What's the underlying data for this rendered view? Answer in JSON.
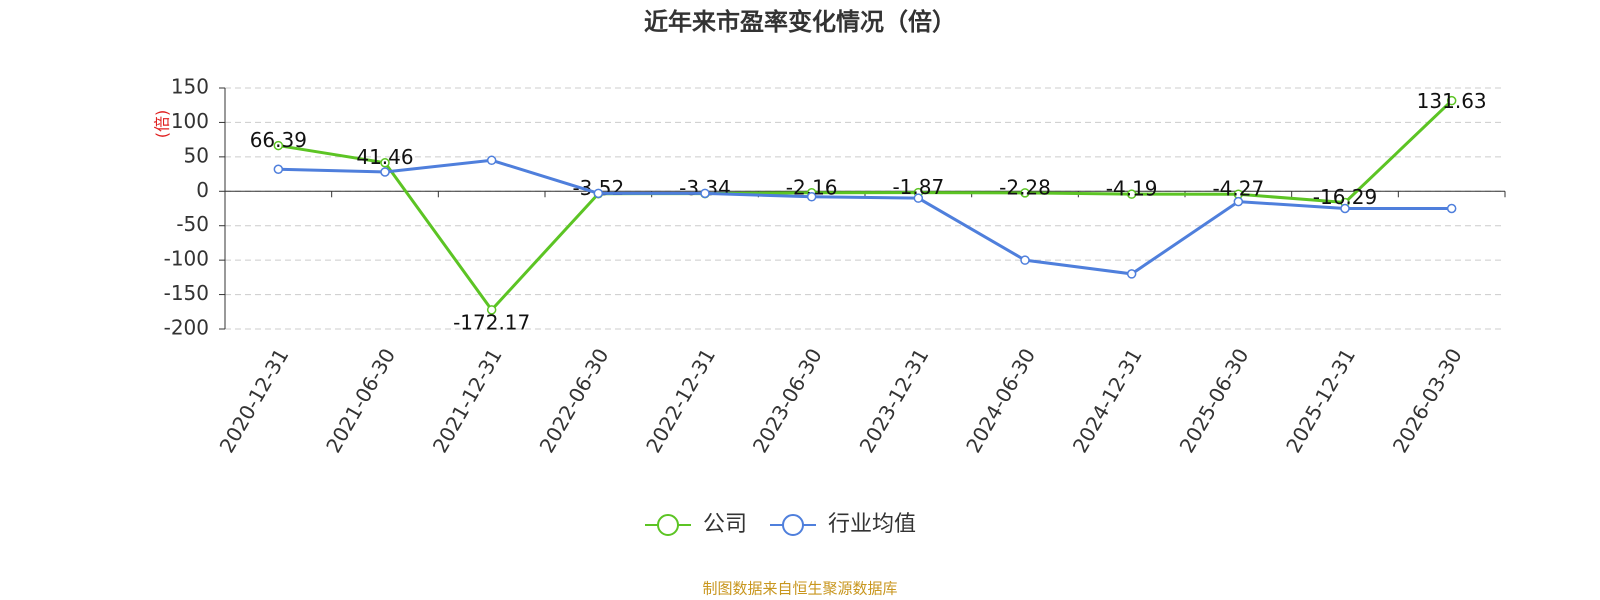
{
  "chart_data": {
    "type": "line",
    "title": "近年来市盈率变化情况（倍）",
    "ylabel": "(倍)",
    "source": "制图数据来自恒生聚源数据库",
    "categories": [
      "2020-12-31",
      "2021-06-30",
      "2021-12-31",
      "2022-06-30",
      "2022-12-31",
      "2023-06-30",
      "2023-12-31",
      "2024-06-30",
      "2024-12-31",
      "2025-06-30",
      "2025-12-31",
      "2026-03-30"
    ],
    "series": [
      {
        "name": "公司",
        "color": "#5cc424",
        "labels": true,
        "values": [
          66.39,
          41.46,
          -172.17,
          -3.52,
          -3.34,
          -2.16,
          -1.87,
          -2.28,
          -4.19,
          -4.27,
          -16.29,
          131.63
        ]
      },
      {
        "name": "行业均值",
        "color": "#4f7fdc",
        "labels": false,
        "values": [
          32,
          28,
          45,
          -3,
          -3,
          -8,
          -10,
          -100,
          -120,
          -15,
          -25,
          -25
        ]
      }
    ],
    "ylim": [
      -200,
      150
    ],
    "yticks": [
      -200,
      -150,
      -100,
      -50,
      0,
      50,
      100,
      150
    ],
    "grid": true
  }
}
